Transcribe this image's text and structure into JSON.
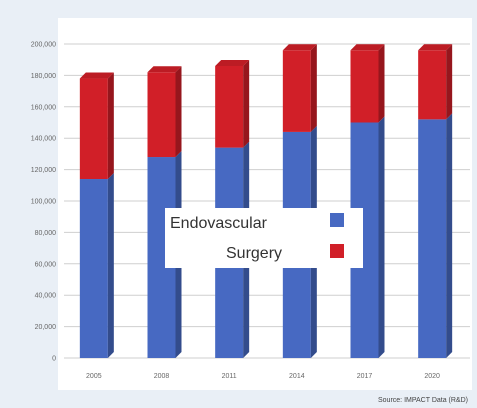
{
  "chart_data": {
    "type": "bar",
    "stacked": true,
    "categories": [
      "2005",
      "2008",
      "2011",
      "2014",
      "2017",
      "2020"
    ],
    "series": [
      {
        "name": "Endovascular",
        "color": "#4769c2",
        "values": [
          114000,
          128000,
          134000,
          144000,
          150000,
          152000
        ]
      },
      {
        "name": "Surgery",
        "color": "#d11f28",
        "values": [
          64000,
          54000,
          52000,
          52000,
          46000,
          44000
        ]
      }
    ],
    "ylim": [
      0,
      200000
    ],
    "yticks": [
      "0",
      "20,000",
      "40,000",
      "60,000",
      "80,000",
      "100,000",
      "120,000",
      "140,000",
      "160,000",
      "180,000",
      "200,000"
    ],
    "grid": true,
    "legend_position": "center",
    "source": "Source: IMPACT Data (R&D)"
  }
}
